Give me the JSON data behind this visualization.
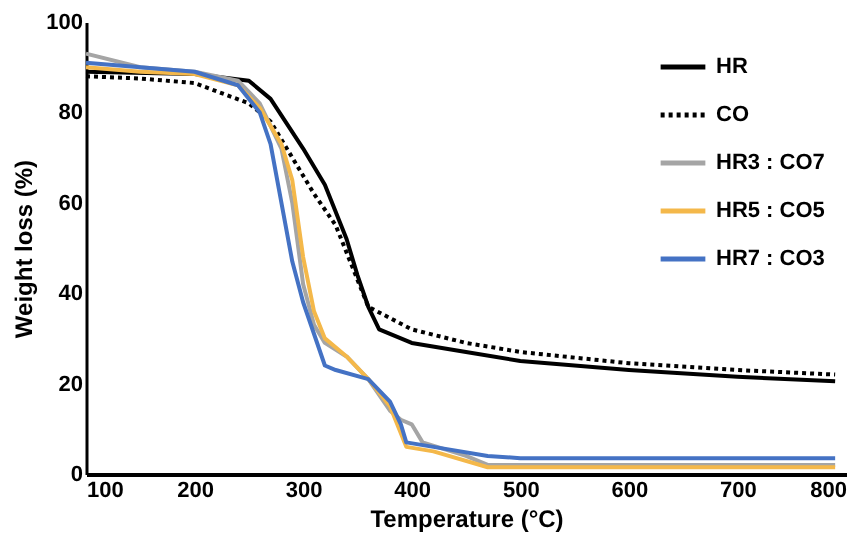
{
  "chart_data": {
    "type": "line",
    "xlabel": "Temperature (°C)",
    "ylabel": "Weight loss (%)",
    "xlim": [
      100,
      800
    ],
    "ylim": [
      0,
      100
    ],
    "xticks": [
      100,
      200,
      300,
      400,
      500,
      600,
      700,
      800
    ],
    "yticks": [
      0,
      20,
      40,
      60,
      80,
      100
    ],
    "grid": false,
    "legend": "top right",
    "marker": "none",
    "series": [
      {
        "name": "HR",
        "color": "#000000",
        "line_style": "solid",
        "x": [
          100,
          200,
          250,
          270,
          300,
          320,
          340,
          350,
          360,
          370,
          400,
          450,
          500,
          600,
          700,
          790
        ],
        "values": [
          89,
          88.5,
          87,
          83,
          72,
          64,
          52,
          44,
          37,
          32,
          29,
          27,
          25,
          23,
          21.5,
          20.5
        ]
      },
      {
        "name": "CO",
        "color": "#000000",
        "line_style": "dotted",
        "x": [
          100,
          150,
          200,
          250,
          270,
          290,
          310,
          330,
          350,
          360,
          400,
          450,
          500,
          600,
          700,
          790
        ],
        "values": [
          88,
          87.5,
          86.5,
          82,
          78,
          70,
          62,
          55,
          43,
          37,
          32,
          29,
          27,
          24.5,
          23,
          22
        ]
      },
      {
        "name": "HR3 : CO7",
        "color": "#a5a5a5",
        "line_style": "solid",
        "x": [
          100,
          150,
          200,
          240,
          260,
          280,
          290,
          300,
          310,
          320,
          340,
          360,
          380,
          390,
          400,
          410,
          450,
          470,
          500,
          790
        ],
        "values": [
          93,
          90,
          89,
          87,
          82,
          72,
          60,
          42,
          33,
          29,
          26,
          21,
          14,
          12,
          11,
          7,
          4,
          2,
          2,
          2
        ]
      },
      {
        "name": "HR5 : CO5",
        "color": "#f4b84a",
        "line_style": "solid",
        "x": [
          100,
          150,
          200,
          240,
          260,
          280,
          290,
          300,
          310,
          320,
          340,
          360,
          380,
          395,
          420,
          470,
          500,
          790
        ],
        "values": [
          90,
          89,
          88.5,
          86,
          81,
          73,
          65,
          48,
          36,
          30,
          26,
          21,
          15,
          6,
          5,
          1.5,
          1.5,
          1.5
        ]
      },
      {
        "name": "HR7 : CO3",
        "color": "#4472c4",
        "line_style": "solid",
        "x": [
          100,
          150,
          200,
          240,
          260,
          270,
          280,
          290,
          300,
          320,
          330,
          360,
          380,
          390,
          395,
          420,
          470,
          500,
          790
        ],
        "values": [
          91,
          90,
          89,
          86,
          80,
          73,
          60,
          47,
          38,
          24,
          23,
          21,
          16,
          11,
          7,
          6,
          4,
          3.5,
          3.5
        ]
      }
    ]
  }
}
